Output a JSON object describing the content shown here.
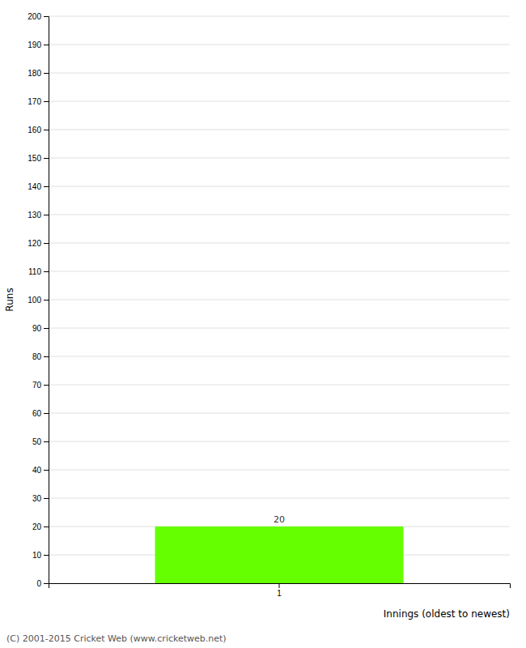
{
  "chart_data": {
    "type": "bar",
    "xlabel": "Innings (oldest to newest)",
    "ylabel": "Runs",
    "categories": [
      "1"
    ],
    "values": [
      20
    ],
    "color": "#66ff00",
    "data_labels": true,
    "ylim": [
      0,
      200
    ],
    "yticks": [
      0,
      10,
      20,
      30,
      40,
      50,
      60,
      70,
      80,
      90,
      100,
      110,
      120,
      130,
      140,
      150,
      160,
      170,
      180,
      190,
      200
    ],
    "grid": true,
    "annotations": [
      "(C) 2001-2015 Cricket Web (www.cricketweb.net)"
    ]
  }
}
